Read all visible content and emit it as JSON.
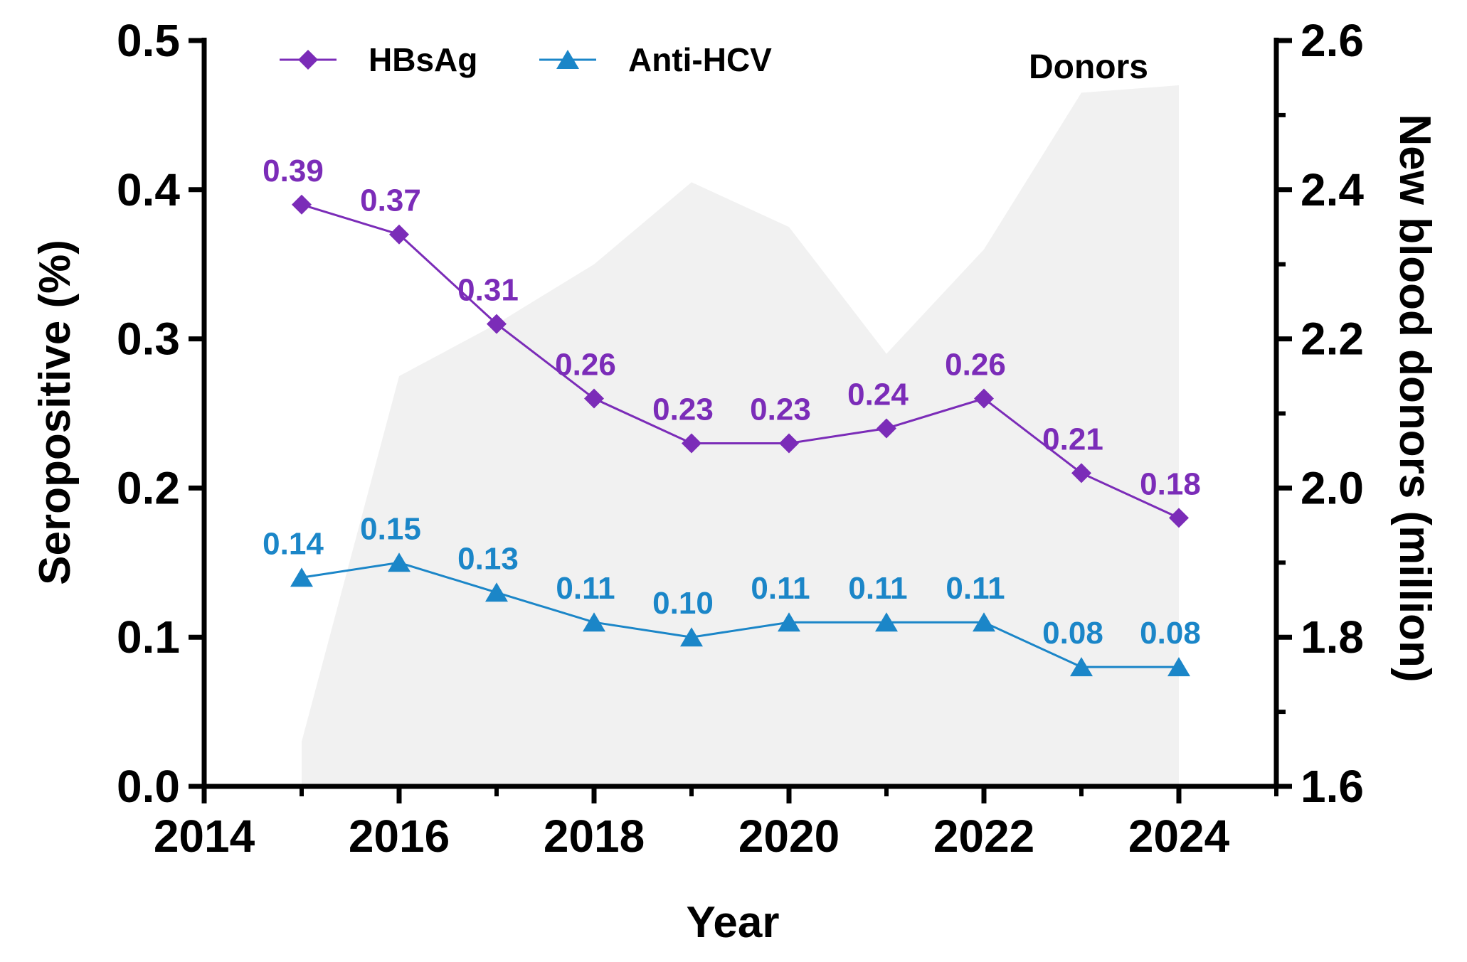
{
  "chart_data": {
    "type": "line",
    "title": "",
    "xlabel": "Year",
    "ylabel": "Seropositive (%)",
    "y2label": "New blood donors (million)",
    "xlim": [
      2014,
      2025
    ],
    "ylim": [
      0.0,
      0.5
    ],
    "y2lim": [
      1.6,
      2.6
    ],
    "x_ticks": [
      "2014",
      "2016",
      "2018",
      "2020",
      "2022",
      "2024"
    ],
    "y_ticks": [
      "0.0",
      "0.1",
      "0.2",
      "0.3",
      "0.4",
      "0.5"
    ],
    "y2_ticks": [
      "1.6",
      "1.8",
      "2.0",
      "2.2",
      "2.4",
      "2.6"
    ],
    "x": [
      2015,
      2016,
      2017,
      2018,
      2019,
      2020,
      2021,
      2022,
      2023,
      2024
    ],
    "series": [
      {
        "name": "HBsAg",
        "axis": "left",
        "marker": "diamond",
        "color": "#7B2CB8",
        "values": [
          0.39,
          0.37,
          0.31,
          0.26,
          0.23,
          0.23,
          0.24,
          0.26,
          0.21,
          0.18
        ],
        "labels": [
          "0.39",
          "0.37",
          "0.31",
          "0.26",
          "0.23",
          "0.23",
          "0.24",
          "0.26",
          "0.21",
          "0.18"
        ]
      },
      {
        "name": "Anti-HCV",
        "axis": "left",
        "marker": "triangle",
        "color": "#1B86C8",
        "values": [
          0.14,
          0.15,
          0.13,
          0.11,
          0.1,
          0.11,
          0.11,
          0.11,
          0.08,
          0.08
        ],
        "labels": [
          "0.14",
          "0.15",
          "0.13",
          "0.11",
          "0.10",
          "0.11",
          "0.11",
          "0.11",
          "0.08",
          "0.08"
        ]
      }
    ],
    "area": {
      "name": "Donors",
      "axis": "right",
      "color": "#f1f1f1",
      "x": [
        2015,
        2016,
        2017,
        2018,
        2019,
        2020,
        2021,
        2022,
        2023,
        2024
      ],
      "values": [
        1.66,
        2.15,
        2.22,
        2.3,
        2.41,
        2.35,
        2.18,
        2.32,
        2.53,
        2.54
      ]
    },
    "legend_position": "top-left",
    "grid": false
  }
}
